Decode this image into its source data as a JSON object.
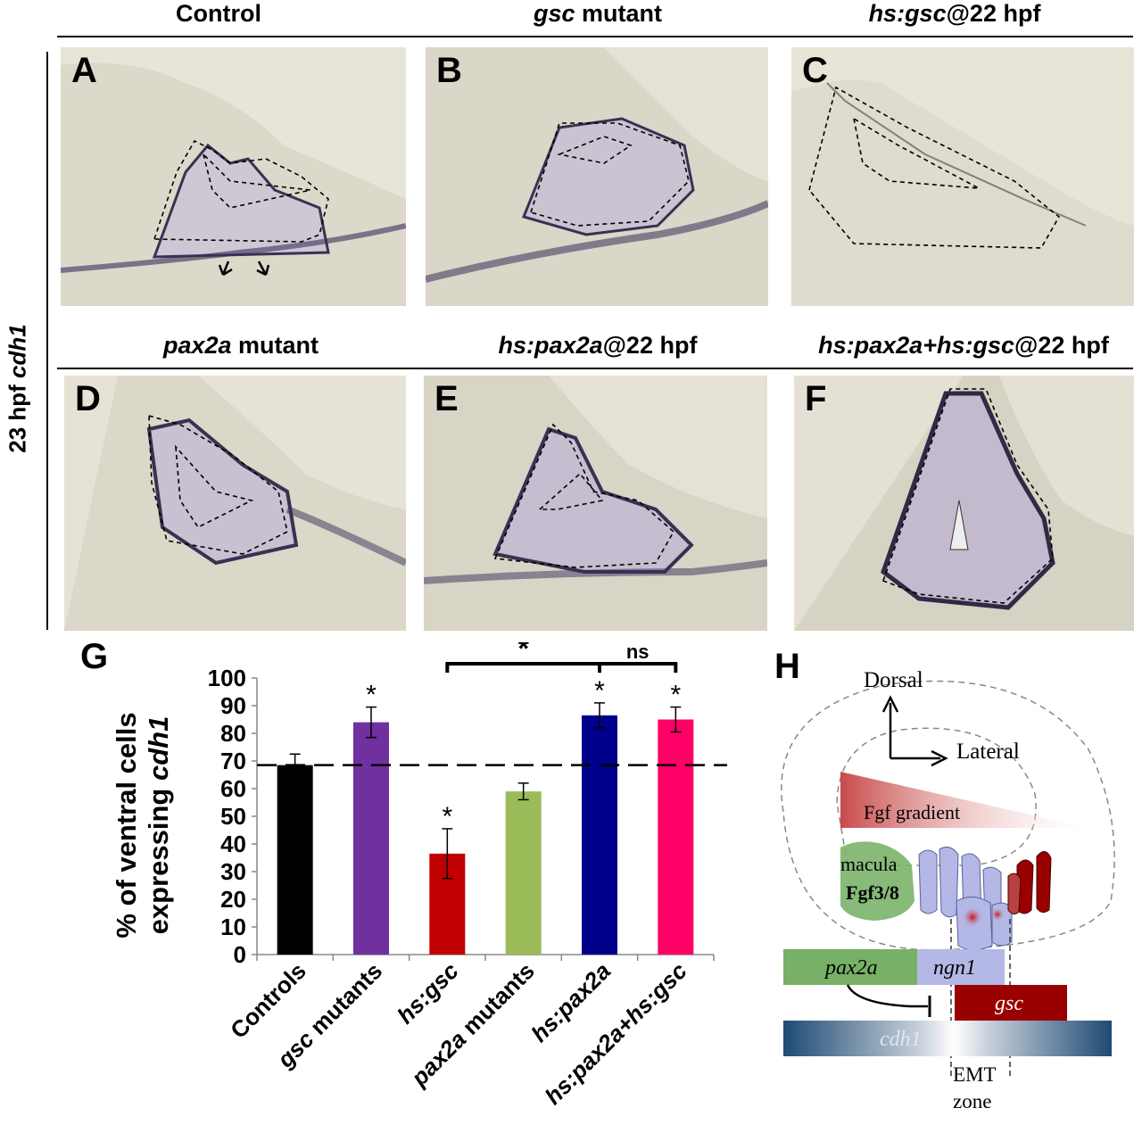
{
  "top_headers": [
    {
      "pre": "Control",
      "it": "",
      "post": ""
    },
    {
      "pre": "",
      "it": "gsc",
      "post": " mutant"
    },
    {
      "pre": "",
      "it": "hs:gsc",
      "post": "@22 hpf"
    }
  ],
  "mid_headers": [
    {
      "pre": "",
      "it": "pax2a",
      "post": " mutant"
    },
    {
      "pre": "",
      "it": "hs:pax2a",
      "post": "@22 hpf"
    },
    {
      "pre": "",
      "it": "hs:pax2a+hs:gsc",
      "post": "@22 hpf"
    }
  ],
  "side_label": {
    "pre": "23 hpf ",
    "it": "cdh1"
  },
  "panels": [
    "A",
    "B",
    "C",
    "D",
    "E",
    "F"
  ],
  "chart_label": "G",
  "diagram_label": "H",
  "chart_data": {
    "type": "bar",
    "categories": [
      "Controls",
      "gsc mutants",
      "hs:gsc",
      "pax2a mutants",
      "hs:pax2a",
      "hs:pax2a+hs:gsc"
    ],
    "values": [
      68.5,
      84,
      36.5,
      59,
      86.5,
      85
    ],
    "errors": [
      4,
      5.5,
      9,
      3,
      4.5,
      4.5
    ],
    "colors": [
      "#000000",
      "#7030a0",
      "#c00000",
      "#9bbb59",
      "#00008b",
      "#ff0066"
    ],
    "significant": [
      false,
      true,
      true,
      false,
      true,
      true
    ],
    "ylabel_line1": "% of ventral cells",
    "ylabel_line2_pre": "expressing ",
    "ylabel_line2_it": "cdh1",
    "ylim": [
      0,
      100
    ],
    "yticks": [
      0,
      10,
      20,
      30,
      40,
      50,
      60,
      70,
      80,
      90,
      100
    ],
    "reference_line": 68.5,
    "brackets": [
      {
        "from": 2,
        "to": 4,
        "label": "*"
      },
      {
        "from": 4,
        "to": 5,
        "label": "ns"
      }
    ],
    "star": "*"
  },
  "diagram": {
    "dorsal": "Dorsal",
    "lateral": "Lateral",
    "fgf_gradient": "Fgf gradient",
    "macula": "macula",
    "fgf38": "Fgf3/8",
    "pax2a": "pax2a",
    "ngn1": "ngn1",
    "gsc": "gsc",
    "cdh1": "cdh1",
    "emt1": "EMT",
    "emt2": "zone",
    "colors": {
      "green": "#77b066",
      "lavender": "#b4b8e6",
      "darkred": "#990000",
      "red": "#d66a6a",
      "navy": "#1f4a73"
    }
  }
}
